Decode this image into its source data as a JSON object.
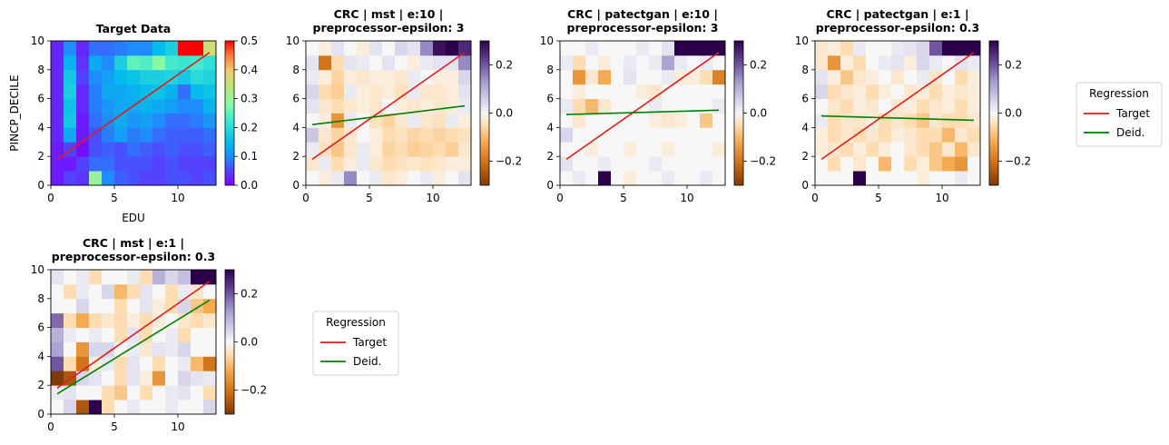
{
  "chart_data": [
    {
      "type": "heatmap",
      "title": "Target Data",
      "xlabel": "EDU",
      "ylabel": "PINCP_DECILE",
      "xlim": [
        0,
        13
      ],
      "ylim": [
        0,
        10
      ],
      "xticks": [
        0,
        5,
        10
      ],
      "yticks": [
        0,
        2,
        4,
        6,
        8,
        10
      ],
      "colorscale": "rainbow",
      "clim": [
        0,
        0.5
      ],
      "cbar_ticks": [
        0.0,
        0.1,
        0.2,
        0.3,
        0.4,
        0.5
      ],
      "cbar_tick_labels": [
        "0.0",
        "0.1",
        "0.2",
        "0.3",
        "0.4",
        "0.5"
      ],
      "cells": [
        [
          0.02,
          0.05,
          0.04,
          0.3,
          0.1,
          0.07,
          0.06,
          0.05,
          0.05,
          0.06,
          0.06,
          0.05,
          0.06
        ],
        [
          0.02,
          0.02,
          0.05,
          0.08,
          0.08,
          0.06,
          0.06,
          0.06,
          0.05,
          0.06,
          0.05,
          0.05,
          0.05
        ],
        [
          0.02,
          0.05,
          0.01,
          0.06,
          0.07,
          0.06,
          0.08,
          0.07,
          0.06,
          0.07,
          0.06,
          0.06,
          0.07
        ],
        [
          0.03,
          0.13,
          0.02,
          0.06,
          0.09,
          0.12,
          0.09,
          0.1,
          0.08,
          0.07,
          0.07,
          0.07,
          0.08
        ],
        [
          0.03,
          0.17,
          0.02,
          0.08,
          0.1,
          0.13,
          0.11,
          0.12,
          0.1,
          0.08,
          0.08,
          0.09,
          0.11
        ],
        [
          0.03,
          0.16,
          0.03,
          0.09,
          0.11,
          0.13,
          0.13,
          0.14,
          0.13,
          0.12,
          0.1,
          0.1,
          0.14
        ],
        [
          0.03,
          0.18,
          0.03,
          0.09,
          0.13,
          0.13,
          0.14,
          0.15,
          0.16,
          0.14,
          0.08,
          0.15,
          0.16
        ],
        [
          0.03,
          0.17,
          0.05,
          0.1,
          0.12,
          0.15,
          0.16,
          0.18,
          0.18,
          0.19,
          0.17,
          0.2,
          0.19
        ],
        [
          0.03,
          0.14,
          0.04,
          0.13,
          0.1,
          0.18,
          0.25,
          0.24,
          0.28,
          0.23,
          0.22,
          0.23,
          0.21
        ],
        [
          0.03,
          0.1,
          0.03,
          0.08,
          0.08,
          0.09,
          0.1,
          0.1,
          0.15,
          0.18,
          0.5,
          0.5,
          0.36
        ]
      ],
      "series": [
        {
          "name": "Target",
          "color": "#e31a1c",
          "x": [
            0.5,
            12.5
          ],
          "y": [
            1.8,
            9.2
          ]
        }
      ]
    },
    {
      "type": "heatmap",
      "title": "CRC | mst | e:10 |\npreprocessor-epsilon: 3",
      "xlim": [
        0,
        13
      ],
      "ylim": [
        0,
        10
      ],
      "xticks": [
        0,
        5,
        10
      ],
      "yticks": [
        0,
        2,
        4,
        6,
        8,
        10
      ],
      "colorscale": "diverging",
      "clim": [
        -0.3,
        0.3
      ],
      "cbar_ticks": [
        -0.2,
        0.0,
        0.2
      ],
      "cbar_tick_labels": [
        "−0.2",
        "0.0",
        "0.2"
      ],
      "cells": [
        [
          0.0,
          -0.02,
          0.02,
          0.15,
          0.0,
          0.02,
          -0.03,
          -0.02,
          0.0,
          0.02,
          -0.02,
          0.0,
          0.03
        ],
        [
          -0.03,
          0.02,
          -0.05,
          -0.02,
          0.02,
          -0.03,
          -0.05,
          -0.04,
          -0.03,
          -0.04,
          -0.03,
          -0.02,
          -0.02
        ],
        [
          0.02,
          -0.04,
          -0.08,
          -0.03,
          0.02,
          -0.02,
          -0.06,
          -0.05,
          -0.07,
          -0.06,
          -0.05,
          -0.07,
          -0.03
        ],
        [
          0.07,
          -0.03,
          -0.06,
          -0.03,
          0.0,
          -0.02,
          -0.05,
          -0.04,
          -0.06,
          -0.05,
          -0.06,
          -0.05,
          -0.04
        ],
        [
          0.0,
          -0.02,
          -0.15,
          0.02,
          0.0,
          -0.04,
          -0.06,
          -0.03,
          0.02,
          -0.03,
          -0.04,
          0.02,
          -0.02
        ],
        [
          0.03,
          -0.03,
          -0.05,
          -0.03,
          -0.02,
          -0.03,
          0.0,
          -0.02,
          -0.03,
          -0.02,
          -0.03,
          -0.02,
          0.02
        ],
        [
          0.05,
          -0.05,
          -0.07,
          0.02,
          -0.02,
          -0.03,
          -0.02,
          -0.04,
          0.02,
          -0.03,
          -0.03,
          -0.02,
          0.03
        ],
        [
          0.02,
          -0.02,
          -0.06,
          -0.02,
          -0.03,
          -0.02,
          -0.02,
          -0.03,
          0.02,
          0.0,
          -0.02,
          -0.02,
          0.05
        ],
        [
          0.03,
          -0.2,
          -0.05,
          0.03,
          0.02,
          0.0,
          0.03,
          0.0,
          -0.02,
          0.02,
          0.03,
          0.03,
          0.15
        ],
        [
          0.0,
          -0.02,
          0.03,
          0.0,
          -0.02,
          0.03,
          0.0,
          0.05,
          0.03,
          0.15,
          0.28,
          0.3,
          0.25
        ]
      ],
      "series": [
        {
          "name": "Target",
          "color": "#e31a1c",
          "x": [
            0.5,
            12.5
          ],
          "y": [
            1.8,
            9.2
          ]
        },
        {
          "name": "Deid.",
          "color": "#008000",
          "x": [
            0.5,
            12.5
          ],
          "y": [
            4.2,
            5.5
          ]
        }
      ]
    },
    {
      "type": "heatmap",
      "title": "CRC | patectgan | e:10 |\npreprocessor-epsilon: 3",
      "xlim": [
        0,
        13
      ],
      "ylim": [
        0,
        10
      ],
      "xticks": [
        0,
        5,
        10
      ],
      "yticks": [
        0,
        2,
        4,
        6,
        8,
        10
      ],
      "colorscale": "diverging",
      "clim": [
        -0.3,
        0.3
      ],
      "cbar_ticks": [
        -0.2,
        0.0,
        0.2
      ],
      "cbar_tick_labels": [
        "−0.2",
        "0.0",
        "0.2"
      ],
      "cells": [
        [
          0.0,
          0.02,
          0.0,
          0.3,
          0.0,
          -0.02,
          0.0,
          0.0,
          0.02,
          0.0,
          0.0,
          0.02,
          0.0
        ],
        [
          0.03,
          0.0,
          0.0,
          0.02,
          0.0,
          0.0,
          0.0,
          0.02,
          0.0,
          0.0,
          0.0,
          0.0,
          0.0
        ],
        [
          0.0,
          0.0,
          -0.02,
          0.0,
          0.0,
          -0.02,
          0.0,
          0.0,
          -0.02,
          0.0,
          0.0,
          0.0,
          -0.02
        ],
        [
          0.05,
          0.0,
          0.0,
          0.0,
          0.0,
          0.0,
          0.0,
          0.0,
          0.0,
          0.0,
          0.0,
          0.0,
          0.0
        ],
        [
          0.0,
          -0.03,
          0.0,
          0.0,
          0.0,
          0.0,
          0.0,
          -0.02,
          -0.03,
          -0.02,
          0.0,
          -0.08,
          0.0
        ],
        [
          0.02,
          -0.05,
          -0.1,
          -0.03,
          0.0,
          0.0,
          0.0,
          0.02,
          0.0,
          0.0,
          0.0,
          0.0,
          0.02
        ],
        [
          0.0,
          -0.02,
          0.0,
          0.0,
          0.0,
          0.0,
          -0.02,
          -0.03,
          0.0,
          0.0,
          0.0,
          0.0,
          0.0
        ],
        [
          0.0,
          -0.15,
          -0.03,
          -0.12,
          0.0,
          0.03,
          0.0,
          0.0,
          0.02,
          -0.02,
          -0.02,
          -0.05,
          -0.18
        ],
        [
          0.02,
          -0.05,
          0.0,
          -0.02,
          0.0,
          0.02,
          0.0,
          0.02,
          0.12,
          0.02,
          0.0,
          0.02,
          0.0
        ],
        [
          0.0,
          0.0,
          0.02,
          0.0,
          0.0,
          0.0,
          0.02,
          0.0,
          0.03,
          0.3,
          0.3,
          0.3,
          0.3
        ]
      ],
      "series": [
        {
          "name": "Target",
          "color": "#e31a1c",
          "x": [
            0.5,
            12.5
          ],
          "y": [
            1.8,
            9.2
          ]
        },
        {
          "name": "Deid.",
          "color": "#008000",
          "x": [
            0.5,
            12.5
          ],
          "y": [
            4.9,
            5.2
          ]
        }
      ]
    },
    {
      "type": "heatmap",
      "title": "CRC | patectgan | e:1 |\npreprocessor-epsilon: 0.3",
      "xlim": [
        0,
        13
      ],
      "ylim": [
        0,
        10
      ],
      "xticks": [
        0,
        5,
        10
      ],
      "yticks": [
        0,
        2,
        4,
        6,
        8,
        10
      ],
      "colorscale": "diverging",
      "clim": [
        -0.3,
        0.3
      ],
      "cbar_ticks": [
        -0.2,
        0.0,
        0.2
      ],
      "cbar_tick_labels": [
        "−0.2",
        "0.0",
        "0.2"
      ],
      "cells": [
        [
          0.0,
          0.0,
          0.0,
          0.3,
          0.0,
          0.0,
          0.0,
          0.0,
          -0.02,
          0.0,
          0.0,
          0.02,
          0.0
        ],
        [
          0.0,
          -0.05,
          0.0,
          -0.03,
          0.0,
          -0.1,
          0.0,
          -0.05,
          -0.02,
          -0.08,
          -0.12,
          -0.15,
          0.0
        ],
        [
          -0.02,
          -0.03,
          -0.05,
          -0.02,
          -0.05,
          -0.02,
          0.0,
          -0.03,
          -0.05,
          -0.08,
          -0.03,
          -0.1,
          -0.03
        ],
        [
          -0.02,
          -0.05,
          -0.03,
          -0.05,
          -0.03,
          -0.05,
          -0.02,
          -0.03,
          -0.05,
          -0.05,
          -0.1,
          -0.03,
          -0.05
        ],
        [
          0.02,
          -0.05,
          -0.03,
          -0.03,
          -0.02,
          -0.05,
          -0.03,
          -0.05,
          -0.08,
          -0.03,
          -0.05,
          -0.05,
          -0.03
        ],
        [
          0.0,
          -0.03,
          -0.05,
          -0.02,
          -0.03,
          0.0,
          -0.03,
          -0.02,
          -0.05,
          -0.03,
          -0.02,
          -0.05,
          -0.02
        ],
        [
          0.05,
          -0.05,
          -0.03,
          -0.02,
          -0.05,
          -0.02,
          0.0,
          -0.03,
          -0.02,
          -0.05,
          -0.02,
          -0.03,
          -0.02
        ],
        [
          0.03,
          -0.02,
          -0.08,
          -0.03,
          -0.02,
          0.0,
          -0.03,
          0.0,
          0.02,
          -0.03,
          0.0,
          -0.05,
          -0.02
        ],
        [
          -0.03,
          -0.15,
          -0.02,
          -0.05,
          0.0,
          0.02,
          0.03,
          -0.02,
          0.05,
          0.02,
          0.0,
          0.03,
          0.02
        ],
        [
          -0.03,
          -0.02,
          -0.05,
          0.02,
          0.0,
          0.0,
          0.02,
          0.03,
          0.05,
          0.2,
          0.3,
          0.3,
          0.3
        ]
      ],
      "series": [
        {
          "name": "Target",
          "color": "#e31a1c",
          "x": [
            0.5,
            12.5
          ],
          "y": [
            1.8,
            9.2
          ]
        },
        {
          "name": "Deid.",
          "color": "#008000",
          "x": [
            0.5,
            12.5
          ],
          "y": [
            4.8,
            4.5
          ]
        }
      ]
    },
    {
      "type": "heatmap",
      "title": "CRC | mst | e:1 |\npreprocessor-epsilon: 0.3",
      "xlim": [
        0,
        13
      ],
      "ylim": [
        0,
        10
      ],
      "xticks": [
        0,
        5,
        10
      ],
      "yticks": [
        0,
        2,
        4,
        6,
        8,
        10
      ],
      "colorscale": "diverging",
      "clim": [
        -0.3,
        0.3
      ],
      "cbar_ticks": [
        -0.2,
        0.0,
        0.2
      ],
      "cbar_tick_labels": [
        "−0.2",
        "0.0",
        "0.2"
      ],
      "cells": [
        [
          0.0,
          0.05,
          -0.25,
          0.3,
          -0.05,
          0.0,
          0.02,
          0.0,
          0.0,
          0.02,
          0.0,
          0.0,
          0.05
        ],
        [
          0.02,
          0.03,
          0.0,
          0.0,
          -0.05,
          -0.08,
          0.0,
          -0.05,
          0.0,
          0.02,
          0.03,
          0.0,
          -0.05
        ],
        [
          -0.3,
          -0.25,
          0.05,
          0.03,
          0.0,
          -0.05,
          0.03,
          -0.02,
          -0.15,
          0.0,
          0.05,
          0.03,
          0.02
        ],
        [
          0.2,
          -0.05,
          -0.2,
          -0.02,
          0.02,
          -0.05,
          0.03,
          0.0,
          -0.05,
          0.0,
          0.02,
          -0.1,
          -0.2
        ],
        [
          0.12,
          0.0,
          -0.15,
          0.05,
          0.05,
          0.0,
          0.02,
          -0.03,
          0.03,
          0.02,
          0.05,
          0.0,
          0.0
        ],
        [
          0.1,
          0.02,
          0.0,
          0.02,
          0.0,
          -0.05,
          0.03,
          -0.05,
          0.0,
          0.02,
          -0.05,
          0.0,
          0.0
        ],
        [
          0.18,
          -0.05,
          -0.12,
          -0.05,
          -0.03,
          -0.05,
          -0.02,
          -0.05,
          -0.02,
          0.0,
          -0.03,
          -0.05,
          -0.03
        ],
        [
          0.0,
          0.0,
          0.05,
          0.0,
          0.0,
          -0.05,
          0.0,
          0.03,
          -0.02,
          -0.05,
          0.05,
          -0.08,
          -0.12
        ],
        [
          0.0,
          -0.05,
          0.02,
          0.0,
          0.05,
          -0.1,
          -0.05,
          0.03,
          0.0,
          -0.05,
          0.02,
          -0.03,
          0.0
        ],
        [
          0.03,
          0.0,
          0.02,
          -0.05,
          0.0,
          0.0,
          0.02,
          -0.05,
          0.1,
          0.05,
          0.08,
          0.3,
          0.3
        ]
      ],
      "series": [
        {
          "name": "Target",
          "color": "#e31a1c",
          "x": [
            0.5,
            12.5
          ],
          "y": [
            1.8,
            9.2
          ]
        },
        {
          "name": "Deid.",
          "color": "#008000",
          "x": [
            0.5,
            12.5
          ],
          "y": [
            1.4,
            7.9
          ]
        }
      ]
    }
  ],
  "legends": [
    {
      "title": "Regression",
      "entries": [
        {
          "label": "Target",
          "color": "#e31a1c"
        },
        {
          "label": "Deid.",
          "color": "#008000"
        }
      ]
    },
    {
      "title": "Regression",
      "entries": [
        {
          "label": "Target",
          "color": "#e31a1c"
        },
        {
          "label": "Deid.",
          "color": "#008000"
        }
      ]
    }
  ]
}
